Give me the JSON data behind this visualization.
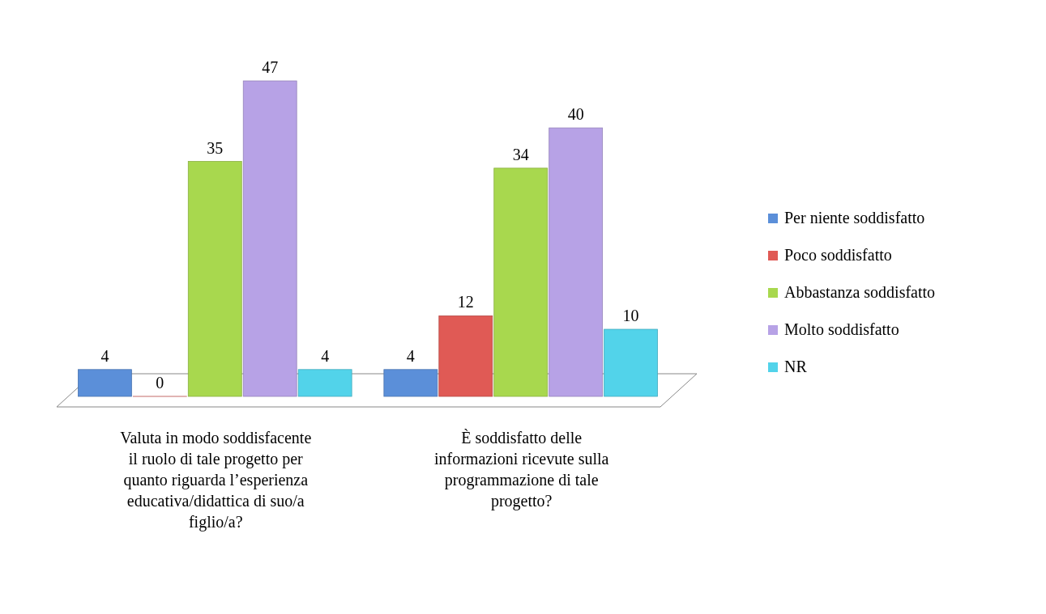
{
  "chart_data": {
    "type": "bar",
    "categories": [
      "Valuta in modo soddisfacente il ruolo di tale progetto per quanto riguarda l’esperienza educativa/didattica di suo/a figlio/a?",
      "È soddisfatto delle informazioni ricevute sulla programmazione di tale progetto?"
    ],
    "series": [
      {
        "name": "Per niente soddisfatto",
        "color": "#5b8fd9",
        "values": [
          4,
          4
        ]
      },
      {
        "name": "Poco soddisfatto",
        "color": "#e05a55",
        "values": [
          0,
          12
        ]
      },
      {
        "name": "Abbastanza soddisfatto",
        "color": "#a8d84e",
        "values": [
          35,
          34
        ]
      },
      {
        "name": "Molto soddisfatto",
        "color": "#b7a2e6",
        "values": [
          47,
          40
        ]
      },
      {
        "name": "NR",
        "color": "#52d3ea",
        "values": [
          4,
          10
        ]
      }
    ],
    "data_labels": true,
    "legend": "right"
  }
}
